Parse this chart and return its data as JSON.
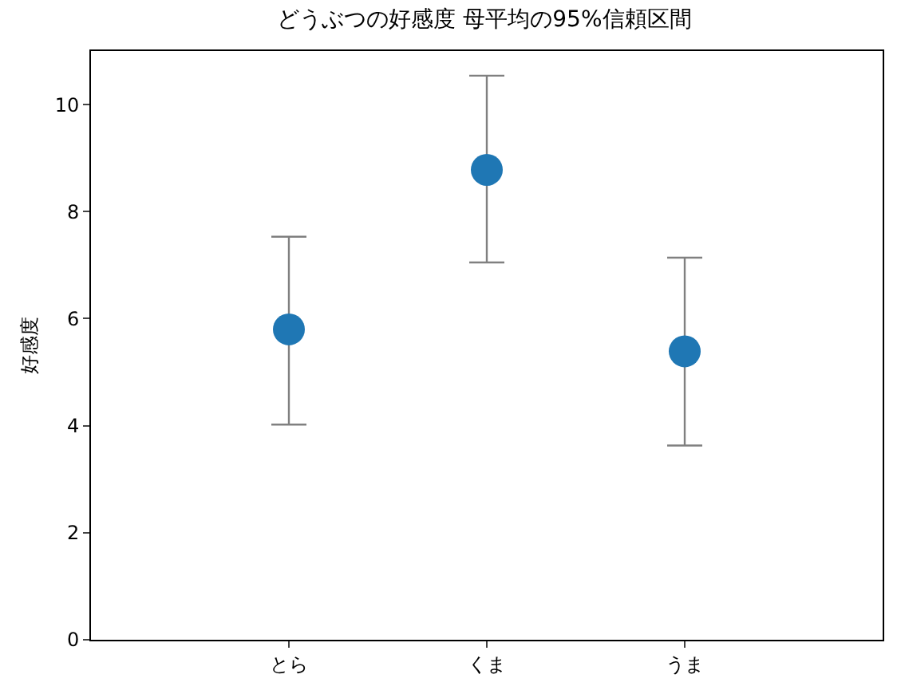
{
  "chart_data": {
    "type": "scatter",
    "title": "どうぶつの好感度 母平均の95%信頼区間",
    "ylabel": "好感度",
    "categories": [
      "とら",
      "くま",
      "うま"
    ],
    "series": [
      {
        "color": "#1f77b4",
        "values": [
          5.8,
          8.78,
          5.39
        ],
        "errors": [
          [
            4.02,
            7.53
          ],
          [
            7.05,
            10.54
          ],
          [
            3.63,
            7.14
          ]
        ]
      }
    ],
    "ylim": [
      0,
      11
    ],
    "yticks": [
      0,
      2,
      4,
      6,
      8,
      10
    ],
    "grid": false,
    "marker": "circle"
  }
}
